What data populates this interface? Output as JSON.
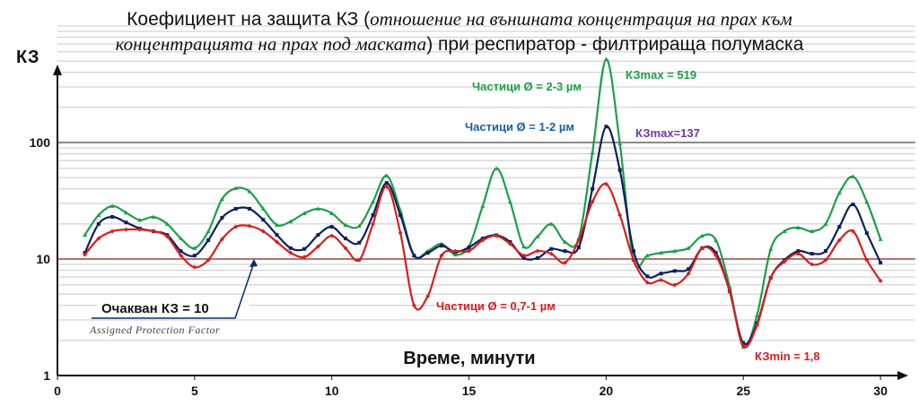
{
  "chart_data": {
    "type": "line",
    "title_part1": "Коефициент на защита КЗ (",
    "title_italic1": "отношение на външната концентрация на прах към",
    "title_italic2": "концентрацията на прах под маската",
    "title_part2": ") при респиратор - филтрираща полумаска",
    "ylabel": "КЗ",
    "xlabel": "Време, минути",
    "yscale": "log",
    "ylim": [
      1,
      1000
    ],
    "xlim": [
      0,
      31
    ],
    "yticks": [
      "1",
      "10",
      "100"
    ],
    "xticks": [
      "0",
      "5",
      "10",
      "15",
      "20",
      "25",
      "30"
    ],
    "colors": {
      "green": "#1e9e4a",
      "blue": "#0d1f5c",
      "red": "#d42020",
      "ref": "#8b1a1a"
    },
    "x": [
      1,
      1.5,
      2,
      2.5,
      3,
      3.5,
      4,
      4.5,
      5,
      5.5,
      6,
      6.5,
      7,
      7.5,
      8,
      8.5,
      9,
      9.5,
      10,
      10.5,
      11,
      11.5,
      12,
      12.5,
      13,
      13.5,
      14,
      14.5,
      15,
      15.5,
      16,
      16.5,
      17,
      17.5,
      18,
      18.5,
      19,
      19.5,
      20,
      20.5,
      21,
      21.5,
      22,
      22.5,
      23,
      23.5,
      24,
      24.5,
      25,
      25.5,
      26,
      26.5,
      27,
      27.5,
      28,
      28.5,
      29,
      29.5,
      30
    ],
    "series": [
      {
        "name": "Частици Ø = 2-3 µм",
        "color": "#1e9e4a",
        "marker": "triangle",
        "values": [
          16.1,
          23.8,
          28.5,
          25,
          21.6,
          23,
          20,
          15,
          12.4,
          17.3,
          32.7,
          40.5,
          38,
          27,
          19.6,
          21,
          24.7,
          27,
          24.7,
          19.6,
          19.2,
          31,
          52,
          26,
          10.7,
          11.7,
          13.5,
          10.9,
          12.8,
          28.5,
          60,
          31,
          12.8,
          15.6,
          20,
          14,
          15,
          82,
          519,
          98,
          9.8,
          10.7,
          11.3,
          11.7,
          12.4,
          15.8,
          14.5,
          5.8,
          1.76,
          3.3,
          12.2,
          17.3,
          18.6,
          17.3,
          20,
          37,
          51,
          31,
          14.8
        ]
      },
      {
        "name": "Частици Ø = 1-2 µм",
        "color": "#0d1f5c",
        "marker": "square",
        "values": [
          11.3,
          20,
          23,
          20.6,
          18.3,
          17.3,
          16.1,
          11.7,
          10.7,
          14.5,
          22.6,
          27,
          27,
          21.7,
          16.1,
          12.4,
          12.2,
          16.1,
          18.9,
          15,
          13.8,
          23.8,
          45,
          23.8,
          10.7,
          11.3,
          13,
          11.5,
          12.6,
          15,
          16,
          14,
          10.2,
          10.2,
          12.2,
          11.7,
          12.6,
          40,
          137,
          58,
          11.7,
          7.1,
          7.5,
          7.9,
          8.2,
          12.4,
          11.3,
          5.3,
          1.9,
          2.8,
          6.9,
          9.8,
          11.7,
          11.1,
          11.7,
          18.9,
          29.4,
          16.7,
          9.3
        ]
      },
      {
        "name": "Частици Ø = 0,7-1 µм",
        "color": "#d42020",
        "marker": "diamond",
        "values": [
          10.9,
          15,
          17.3,
          17.9,
          17.9,
          17.3,
          15.6,
          10.7,
          8.5,
          9.8,
          14.8,
          18.9,
          19.2,
          17.3,
          14,
          11.3,
          10.4,
          12.8,
          15.8,
          12.4,
          9.8,
          20,
          42,
          16.7,
          4,
          4.8,
          10.7,
          11.7,
          11.7,
          14.5,
          15.8,
          13.5,
          10.7,
          11.7,
          11.1,
          9.3,
          14.5,
          31,
          44,
          23.8,
          9.8,
          6.3,
          6.6,
          6,
          7.5,
          12.4,
          10.7,
          5.3,
          1.8,
          2.7,
          6.9,
          9.5,
          11.1,
          9,
          9.8,
          14.5,
          17.3,
          9.8,
          6.5
        ]
      }
    ],
    "annotations": {
      "kzmax_green": "КЗmax = 519",
      "kzmax_blue": "КЗmax=137",
      "kzmin": "КЗmin = 1,8",
      "expected": "Очакван КЗ = 10",
      "apf": "Assigned Protection Factor"
    },
    "reference_line": {
      "value": 10
    }
  }
}
